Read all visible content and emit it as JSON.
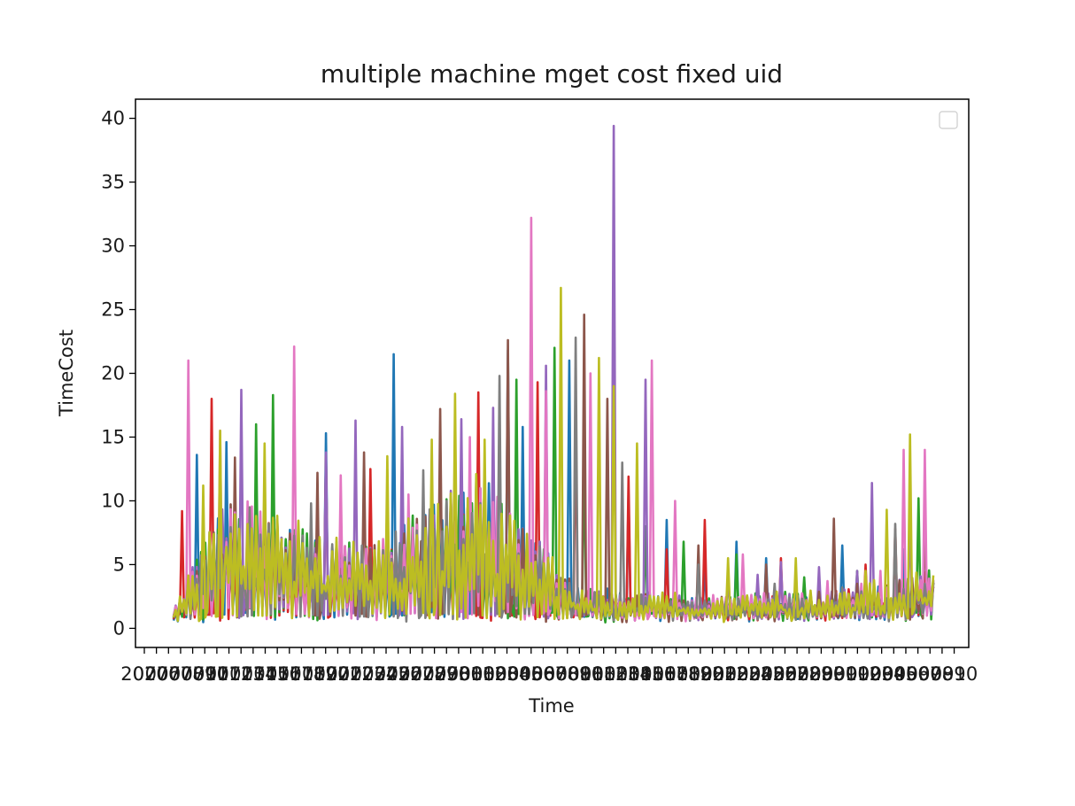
{
  "chart_data": {
    "type": "line",
    "title": "multiple machine mget cost fixed uid",
    "xlabel": "Time",
    "ylabel": "TimeCost",
    "ylim": [
      -1.5,
      41.5
    ],
    "y_ticks": [
      0,
      5,
      10,
      15,
      20,
      25,
      30,
      35,
      40
    ],
    "x_tick_labels": [
      "2020",
      "0706",
      "0707",
      "0708",
      "0709",
      "0710",
      "0711",
      "0712",
      "0713",
      "0714",
      "0715",
      "0716",
      "0717",
      "0718",
      "0719",
      "0720",
      "0721",
      "0722",
      "0723",
      "0724",
      "0725",
      "0726",
      "0727",
      "0728",
      "0729",
      "0730",
      "0731",
      "0801",
      "0802",
      "0803",
      "0804",
      "0805",
      "0806",
      "0807",
      "0808",
      "0809",
      "0810",
      "0811",
      "0812",
      "0813",
      "0814",
      "0815",
      "0816",
      "0817",
      "0818",
      "0819",
      "0820",
      "0821",
      "0822",
      "0823",
      "0824",
      "0825",
      "0826",
      "0827",
      "0828",
      "0829",
      "0830",
      "0831",
      "0901",
      "0902",
      "0903",
      "0904",
      "0905",
      "0906",
      "0907",
      "0908",
      "0909",
      "0910"
    ],
    "grid": false,
    "legend": {
      "position": "top-right",
      "entries": []
    },
    "series_colors": [
      "#1f77b4",
      "#d62728",
      "#2ca02c",
      "#9467bd",
      "#8c564b",
      "#e377c2",
      "#7f7f7f",
      "#bcbd22"
    ],
    "series": [
      {
        "peaks": [
          [
            0.03,
            13.6
          ],
          [
            0.07,
            14.6
          ],
          [
            0.2,
            15.3
          ],
          [
            0.29,
            21.5
          ],
          [
            0.44,
            21.8
          ],
          [
            0.46,
            15.8
          ],
          [
            0.52,
            21.0
          ],
          [
            0.6,
            10.5
          ],
          [
            0.65,
            8.5
          ],
          [
            0.7,
            5.2
          ],
          [
            0.74,
            6.8
          ],
          [
            0.78,
            5.5
          ],
          [
            0.82,
            4.0
          ],
          [
            0.88,
            6.5
          ],
          [
            0.96,
            6.2
          ]
        ],
        "base": [
          0.8,
          10.0,
          8.0,
          6.0,
          5.5,
          9.0,
          12.0,
          7.0,
          2.5,
          2.0,
          1.8,
          1.9,
          2.2,
          2.3,
          3.0,
          4.0
        ]
      },
      {
        "peaks": [
          [
            0.01,
            9.2
          ],
          [
            0.05,
            18.0
          ],
          [
            0.2,
            13.5
          ],
          [
            0.26,
            12.5
          ],
          [
            0.4,
            18.5
          ],
          [
            0.48,
            19.3
          ],
          [
            0.53,
            17.0
          ],
          [
            0.6,
            11.9
          ],
          [
            0.65,
            6.2
          ],
          [
            0.7,
            8.5
          ],
          [
            0.8,
            5.5
          ],
          [
            0.91,
            5.0
          ],
          [
            0.95,
            7.8
          ]
        ],
        "base": [
          0.7,
          9.0,
          7.5,
          6.0,
          6.2,
          8.5,
          10.0,
          6.5,
          2.4,
          2.0,
          1.7,
          1.8,
          2.0,
          2.2,
          2.8,
          3.8
        ]
      },
      {
        "peaks": [
          [
            0.11,
            16.0
          ],
          [
            0.13,
            18.3
          ],
          [
            0.3,
            12.0
          ],
          [
            0.45,
            19.5
          ],
          [
            0.5,
            22.0
          ],
          [
            0.54,
            14.2
          ],
          [
            0.62,
            8.0
          ],
          [
            0.67,
            6.8
          ],
          [
            0.74,
            5.8
          ],
          [
            0.83,
            4.0
          ],
          [
            0.9,
            4.5
          ],
          [
            0.98,
            10.2
          ]
        ],
        "base": [
          0.9,
          9.5,
          8.2,
          6.5,
          6.0,
          9.2,
          11.0,
          6.8,
          2.5,
          2.1,
          1.9,
          1.9,
          2.1,
          2.4,
          2.9,
          4.2
        ]
      },
      {
        "peaks": [
          [
            0.09,
            18.7
          ],
          [
            0.2,
            13.8
          ],
          [
            0.24,
            16.3
          ],
          [
            0.3,
            15.8
          ],
          [
            0.38,
            16.4
          ],
          [
            0.42,
            17.3
          ],
          [
            0.49,
            20.6
          ],
          [
            0.58,
            39.4
          ],
          [
            0.62,
            19.5
          ],
          [
            0.73,
            4.3
          ],
          [
            0.77,
            4.2
          ],
          [
            0.8,
            5.2
          ],
          [
            0.85,
            4.8
          ],
          [
            0.9,
            4.5
          ],
          [
            0.92,
            11.4
          ],
          [
            0.97,
            9.6
          ]
        ],
        "base": [
          0.8,
          9.8,
          8.1,
          6.3,
          6.1,
          8.8,
          11.5,
          7.2,
          2.3,
          1.9,
          1.8,
          1.8,
          2.0,
          2.3,
          2.9,
          4.0
        ]
      },
      {
        "peaks": [
          [
            0.08,
            13.4
          ],
          [
            0.19,
            12.2
          ],
          [
            0.25,
            13.8
          ],
          [
            0.35,
            17.2
          ],
          [
            0.44,
            22.6
          ],
          [
            0.54,
            24.6
          ],
          [
            0.57,
            18.0
          ],
          [
            0.69,
            6.5
          ],
          [
            0.78,
            5.0
          ],
          [
            0.87,
            8.6
          ],
          [
            0.9,
            3.5
          ],
          [
            0.99,
            9.5
          ]
        ],
        "base": [
          0.7,
          9.4,
          7.9,
          6.1,
          5.8,
          8.7,
          10.8,
          6.9,
          2.4,
          2.0,
          1.7,
          1.8,
          2.1,
          2.2,
          2.7,
          3.9
        ]
      },
      {
        "peaks": [
          [
            0.02,
            21.0
          ],
          [
            0.06,
            15.5
          ],
          [
            0.16,
            22.1
          ],
          [
            0.22,
            12.0
          ],
          [
            0.31,
            10.5
          ],
          [
            0.39,
            15.0
          ],
          [
            0.47,
            32.2
          ],
          [
            0.49,
            18.6
          ],
          [
            0.55,
            20.0
          ],
          [
            0.63,
            21.0
          ],
          [
            0.66,
            10.0
          ],
          [
            0.75,
            5.8
          ],
          [
            0.86,
            3.7
          ],
          [
            0.93,
            4.5
          ],
          [
            0.96,
            14.0
          ],
          [
            0.99,
            14.0
          ]
        ],
        "base": [
          0.8,
          10.1,
          8.3,
          6.4,
          6.0,
          9.1,
          11.7,
          7.0,
          2.5,
          2.1,
          1.8,
          1.9,
          2.1,
          2.3,
          3.0,
          4.1
        ]
      },
      {
        "peaks": [
          [
            0.1,
            9.5
          ],
          [
            0.18,
            9.8
          ],
          [
            0.33,
            12.4
          ],
          [
            0.36,
            10.0
          ],
          [
            0.43,
            19.8
          ],
          [
            0.53,
            22.8
          ],
          [
            0.59,
            13.0
          ],
          [
            0.69,
            5.0
          ],
          [
            0.79,
            3.5
          ],
          [
            0.88,
            3.2
          ],
          [
            0.95,
            8.2
          ]
        ],
        "base": [
          0.9,
          9.6,
          8.0,
          6.2,
          5.9,
          8.9,
          11.2,
          6.8,
          2.3,
          2.0,
          1.7,
          1.8,
          2.0,
          2.2,
          2.8,
          3.9
        ]
      },
      {
        "peaks": [
          [
            0.04,
            11.2
          ],
          [
            0.06,
            15.5
          ],
          [
            0.12,
            14.5
          ],
          [
            0.28,
            13.5
          ],
          [
            0.34,
            14.8
          ],
          [
            0.37,
            18.4
          ],
          [
            0.41,
            14.8
          ],
          [
            0.51,
            26.7
          ],
          [
            0.56,
            21.2
          ],
          [
            0.58,
            19.0
          ],
          [
            0.61,
            14.5
          ],
          [
            0.73,
            5.5
          ],
          [
            0.82,
            5.5
          ],
          [
            0.91,
            4.5
          ],
          [
            0.94,
            9.3
          ],
          [
            0.97,
            15.2
          ]
        ],
        "base": [
          1.0,
          10.3,
          8.6,
          6.8,
          6.4,
          9.5,
          12.0,
          7.3,
          2.6,
          2.1,
          1.9,
          2.0,
          2.2,
          2.4,
          3.1,
          4.3
        ]
      }
    ]
  }
}
